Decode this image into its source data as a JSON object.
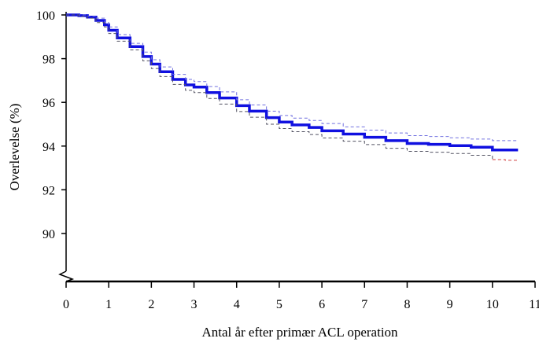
{
  "chart_data": {
    "type": "line",
    "xlabel": "Antal år efter primær ACL operation",
    "ylabel": "Overlevelse (%)",
    "xlim": [
      0,
      11
    ],
    "ylim": [
      87.7,
      100.3
    ],
    "y_axis_break": true,
    "grid": false,
    "x_ticks": [
      "0",
      "1",
      "2",
      "3",
      "4",
      "5",
      "6",
      "7",
      "8",
      "9",
      "10",
      "11"
    ],
    "y_ticks": [
      "90",
      "92",
      "94",
      "96",
      "98",
      "100"
    ],
    "colors": {
      "estimate": "#1010e0",
      "ci_upper": "#7070e0",
      "ci_lower": "#505060",
      "ci_lower_tail": "#d04040"
    },
    "series": [
      {
        "role": "estimate",
        "x": [
          0,
          0.3,
          0.5,
          0.7,
          0.9,
          1.0,
          1.2,
          1.5,
          1.8,
          2.0,
          2.2,
          2.5,
          2.8,
          3.0,
          3.3,
          3.6,
          4.0,
          4.3,
          4.7,
          5.0,
          5.3,
          5.7,
          6.0,
          6.5,
          7.0,
          7.5,
          8.0,
          8.5,
          9.0,
          9.5,
          10.0,
          10.3,
          10.6
        ],
        "y": [
          100,
          99.97,
          99.9,
          99.75,
          99.55,
          99.3,
          98.95,
          98.55,
          98.1,
          97.75,
          97.4,
          97.05,
          96.8,
          96.7,
          96.45,
          96.2,
          95.85,
          95.6,
          95.3,
          95.1,
          94.97,
          94.85,
          94.7,
          94.55,
          94.4,
          94.25,
          94.12,
          94.08,
          94.02,
          93.95,
          93.82,
          93.82,
          93.82
        ]
      },
      {
        "role": "upper-confidence-bound",
        "x": [
          0,
          0.3,
          0.5,
          0.7,
          0.9,
          1.0,
          1.2,
          1.5,
          1.8,
          2.0,
          2.2,
          2.5,
          2.8,
          3.0,
          3.3,
          3.6,
          4.0,
          4.3,
          4.7,
          5.0,
          5.3,
          5.7,
          6.0,
          6.5,
          7.0,
          7.5,
          8.0,
          8.5,
          9.0,
          9.5,
          10.0,
          10.3,
          10.6
        ],
        "y": [
          100,
          100,
          99.95,
          99.85,
          99.65,
          99.45,
          99.1,
          98.7,
          98.3,
          97.95,
          97.62,
          97.28,
          97.05,
          96.95,
          96.72,
          96.48,
          96.12,
          95.88,
          95.6,
          95.4,
          95.28,
          95.17,
          95.03,
          94.88,
          94.73,
          94.6,
          94.48,
          94.44,
          94.38,
          94.32,
          94.25,
          94.25,
          94.25
        ]
      },
      {
        "role": "lower-confidence-bound",
        "x": [
          0,
          0.3,
          0.5,
          0.7,
          0.9,
          1.0,
          1.2,
          1.5,
          1.8,
          2.0,
          2.2,
          2.5,
          2.8,
          3.0,
          3.3,
          3.6,
          4.0,
          4.3,
          4.7,
          5.0,
          5.3,
          5.7,
          6.0,
          6.5,
          7.0,
          7.5,
          8.0,
          8.5,
          9.0,
          9.5,
          10.0,
          10.3,
          10.6
        ],
        "y": [
          100,
          99.94,
          99.85,
          99.65,
          99.45,
          99.15,
          98.8,
          98.4,
          97.9,
          97.55,
          97.18,
          96.82,
          96.55,
          96.45,
          96.18,
          95.92,
          95.58,
          95.32,
          95.0,
          94.8,
          94.66,
          94.53,
          94.37,
          94.22,
          94.07,
          93.9,
          93.76,
          93.72,
          93.66,
          93.58,
          93.38,
          93.35,
          93.32
        ]
      }
    ]
  }
}
